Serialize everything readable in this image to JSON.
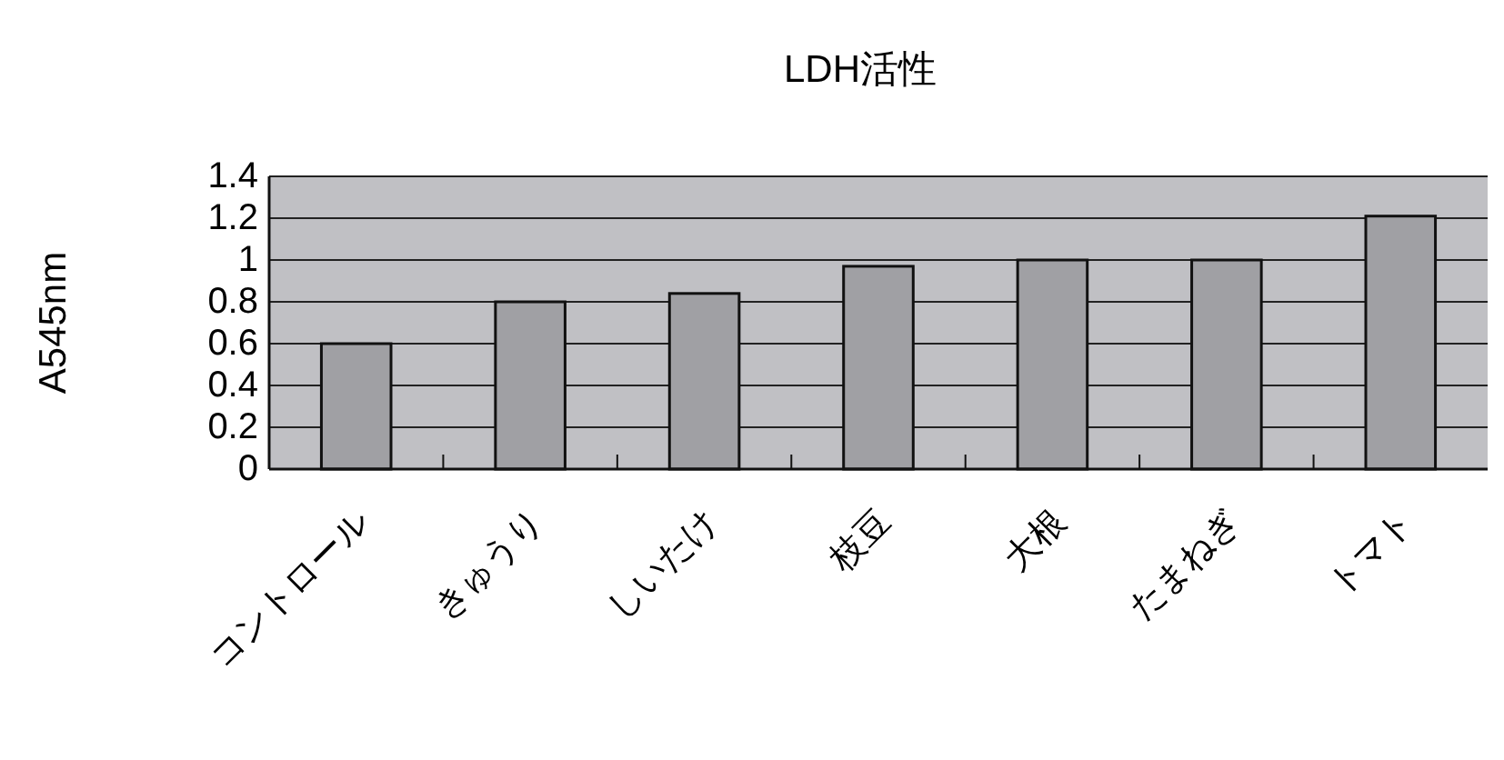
{
  "chart_data": {
    "type": "bar",
    "title": "LDH活性",
    "ylabel": "A545nm",
    "categories": [
      "コントロール",
      "きゅうり",
      "しいたけ",
      "枝豆",
      "大根",
      "たまねぎ",
      "トマト"
    ],
    "values": [
      0.6,
      0.8,
      0.84,
      0.97,
      1.0,
      1.0,
      1.21
    ],
    "color": "#a0a0a4",
    "ylim": [
      0,
      1.4
    ],
    "yticks": [
      0,
      0.2,
      0.4,
      0.6,
      0.8,
      1,
      1.2,
      1.4
    ],
    "grid": "y"
  }
}
